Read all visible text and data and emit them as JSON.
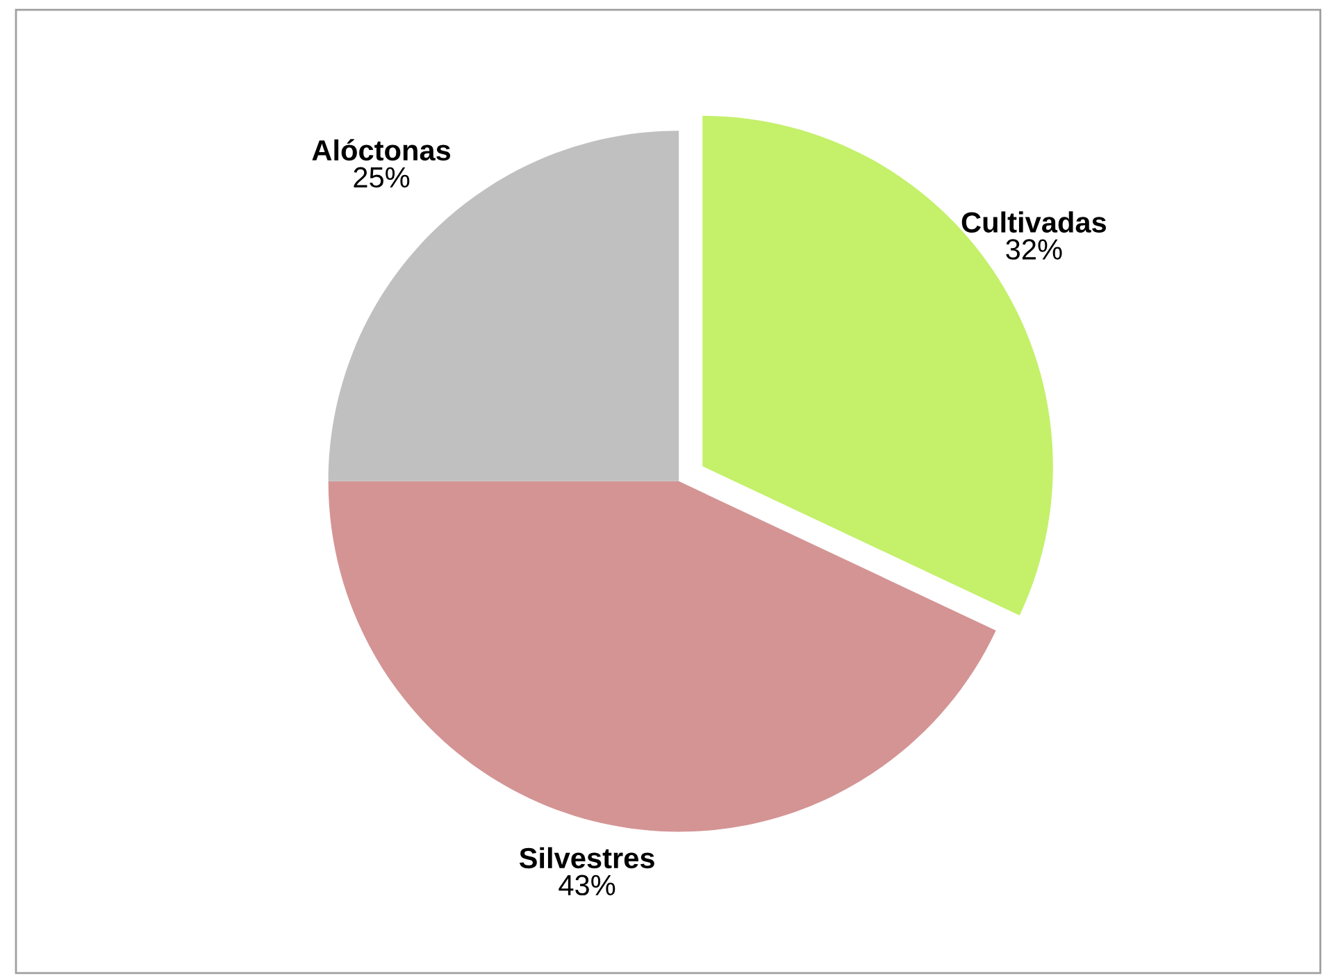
{
  "chart_data": {
    "type": "pie",
    "categories": [
      "Cultivadas",
      "Silvestres",
      "Alóctonas"
    ],
    "values": [
      32,
      43,
      25
    ],
    "colors": [
      "#c4f06a",
      "#d49494",
      "#c0c0c0"
    ],
    "value_labels": [
      "32%",
      "43%",
      "25%"
    ]
  }
}
